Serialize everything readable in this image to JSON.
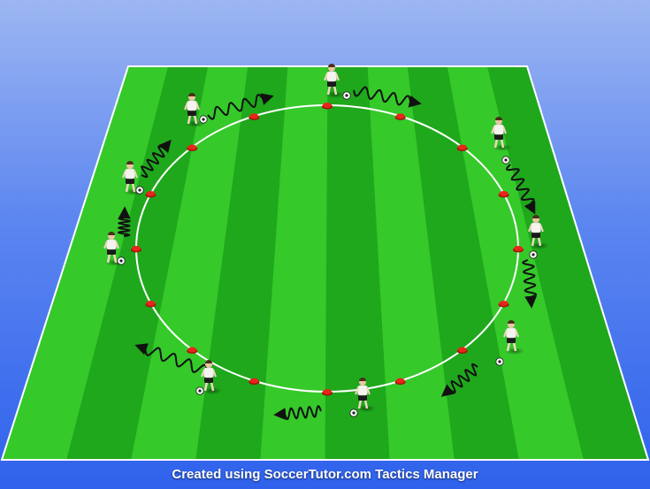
{
  "caption": "Created using SoccerTutor.com Tactics Manager",
  "colors": {
    "pitch_light": "#35c92a",
    "pitch_dark": "#1fa81c",
    "line": "#ffffff",
    "cone": "#e8261a",
    "shirt": "#f4f4ef",
    "shorts": "#1a1a1a",
    "arrow": "#111111"
  },
  "diagram": {
    "pitch": {
      "stripes": 10
    },
    "circle": {
      "cones": 16
    },
    "players": [
      {
        "id": "p1",
        "label": ""
      },
      {
        "id": "p2",
        "label": ""
      },
      {
        "id": "p3",
        "label": ""
      },
      {
        "id": "p4",
        "label": ""
      },
      {
        "id": "p5",
        "label": ""
      },
      {
        "id": "p6",
        "label": ""
      },
      {
        "id": "p7",
        "label": ""
      },
      {
        "id": "p8",
        "label": ""
      },
      {
        "id": "p9",
        "label": ""
      },
      {
        "id": "p10",
        "label": ""
      }
    ],
    "dribble_arrows": 10
  }
}
